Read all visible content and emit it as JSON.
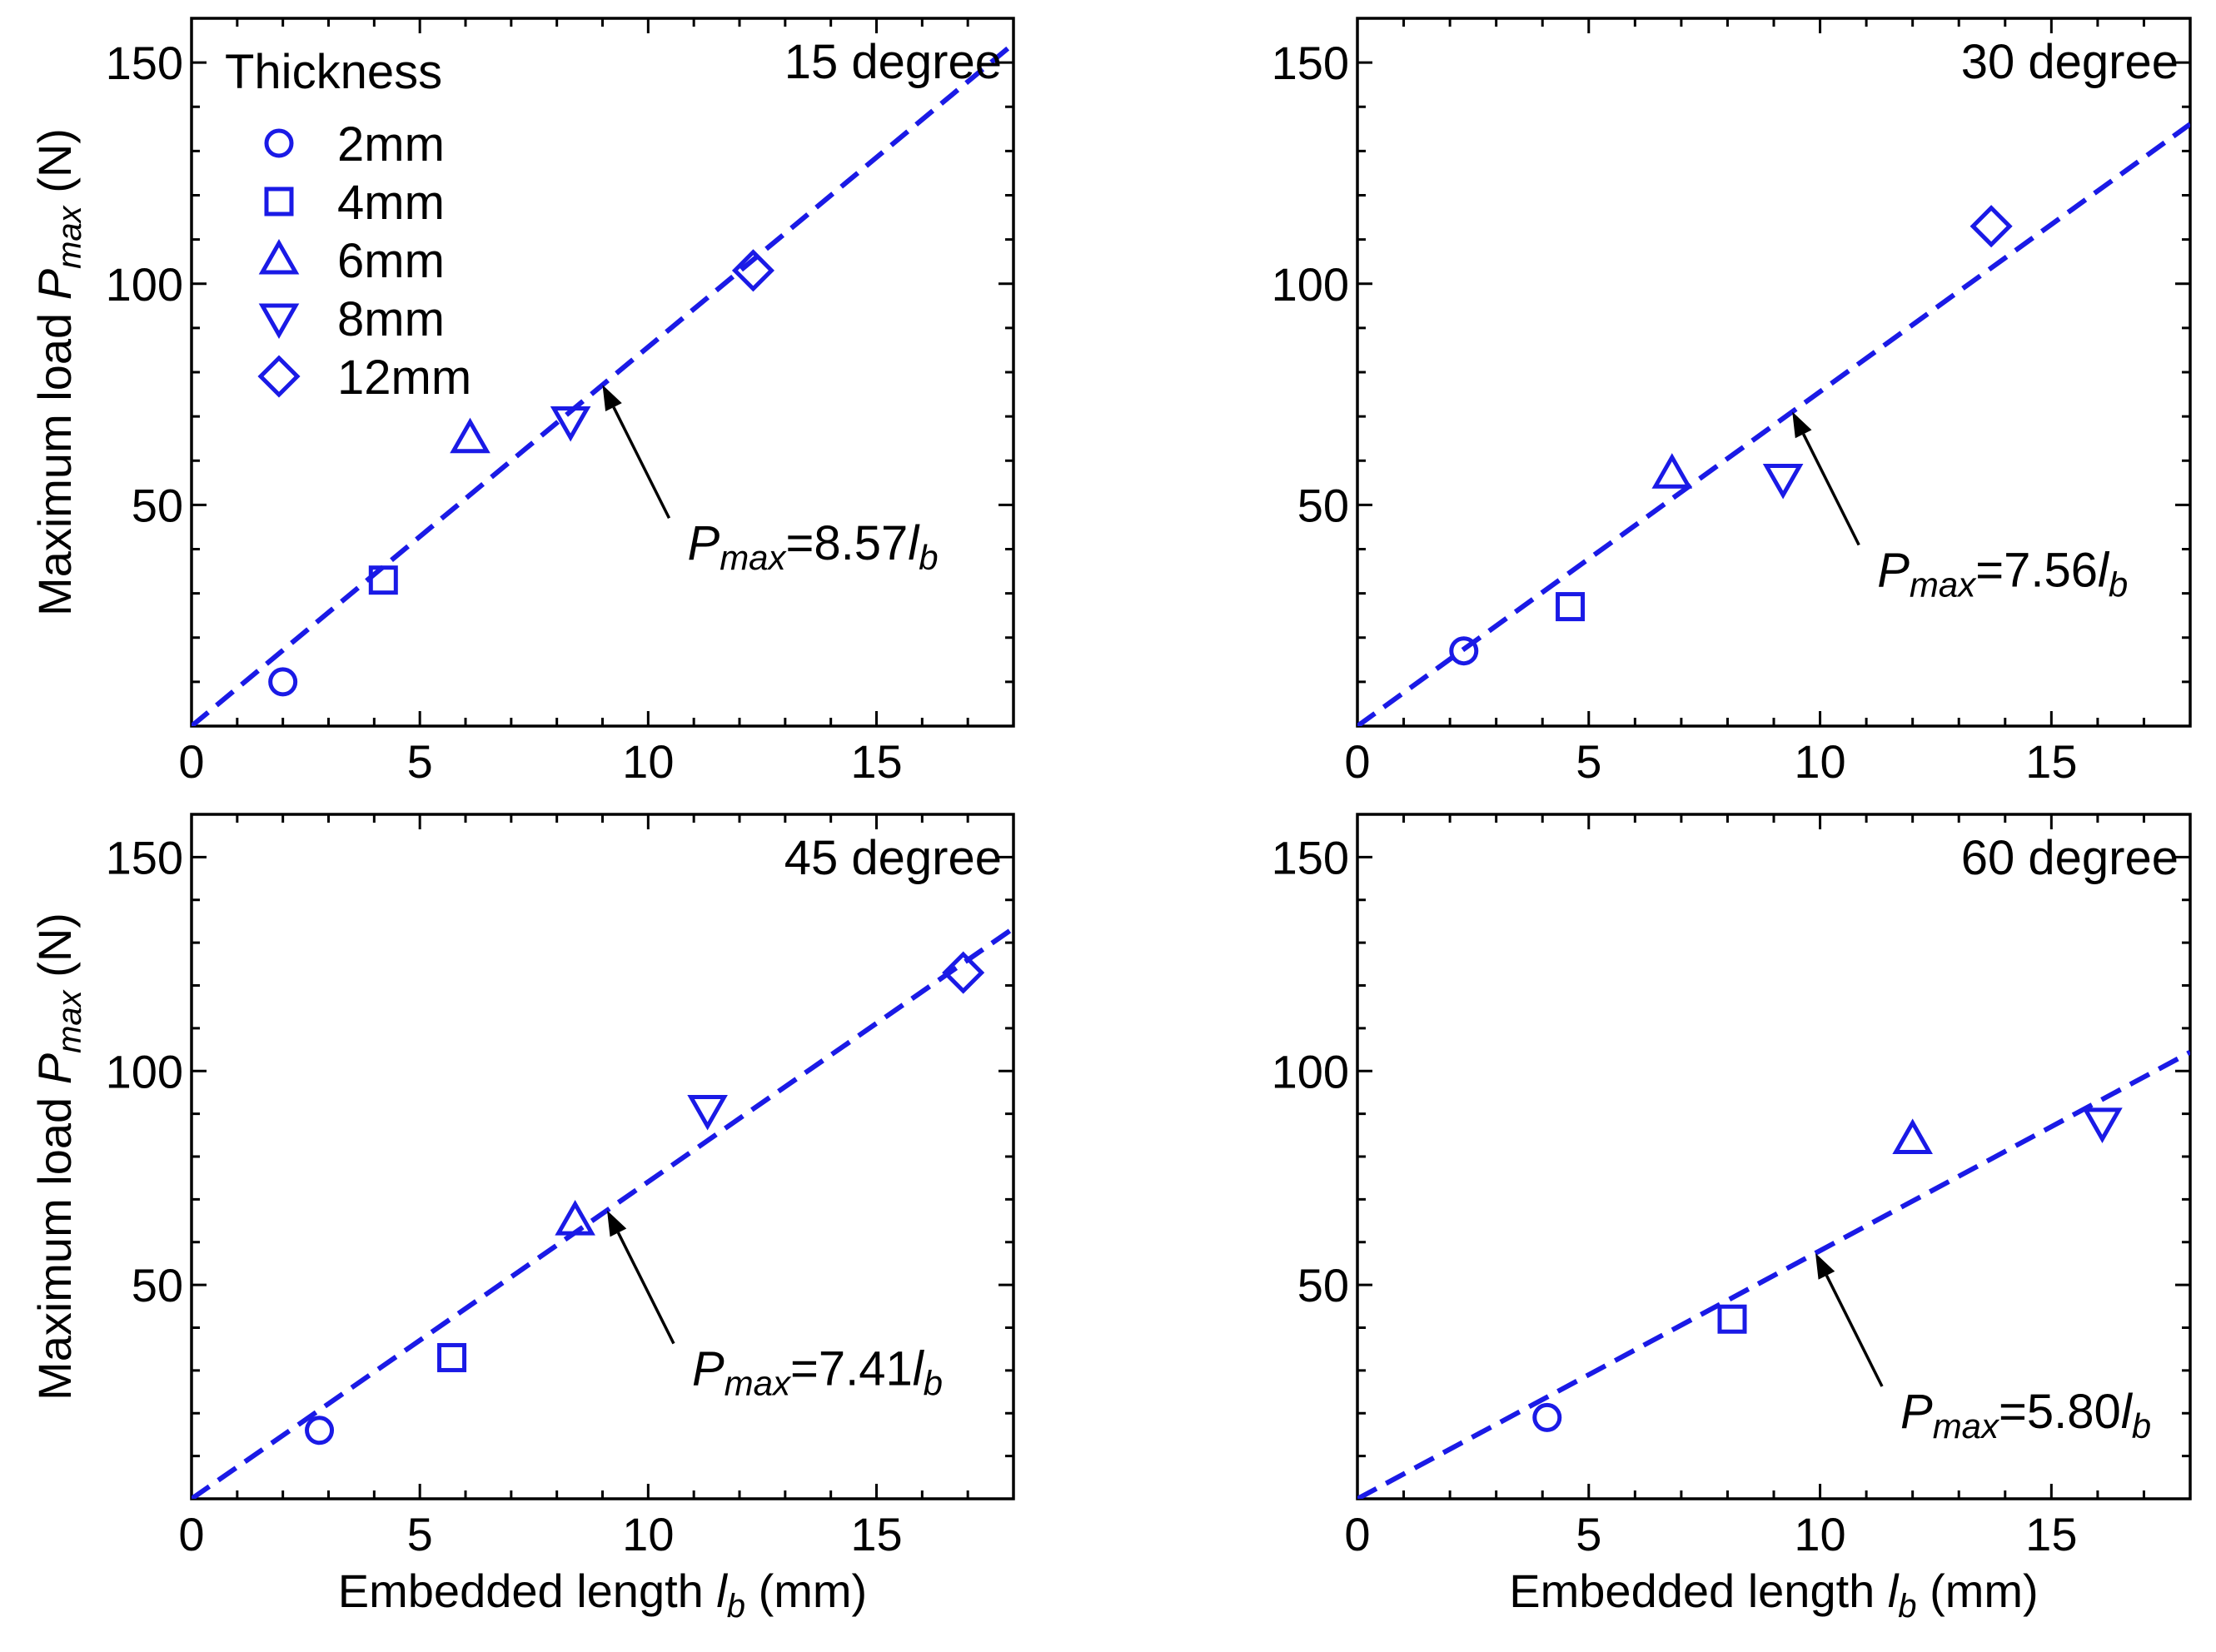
{
  "chart_data": [
    {
      "type": "scatter",
      "title": "15 degree",
      "xlabel": "",
      "ylabel": "Maximum load P_max (N)",
      "xlim": [
        0,
        18
      ],
      "ylim": [
        0,
        160
      ],
      "xticks": [
        0,
        5,
        10,
        15
      ],
      "yticks": [
        50,
        100,
        150
      ],
      "series": [
        {
          "name": "2mm",
          "shape": "circle",
          "x": [
            2.0
          ],
          "y": [
            10
          ]
        },
        {
          "name": "4mm",
          "shape": "square",
          "x": [
            4.2
          ],
          "y": [
            33
          ]
        },
        {
          "name": "6mm",
          "shape": "triangle-up",
          "x": [
            6.1
          ],
          "y": [
            65
          ]
        },
        {
          "name": "8mm",
          "shape": "triangle-down",
          "x": [
            8.3
          ],
          "y": [
            69
          ]
        },
        {
          "name": "12mm",
          "shape": "diamond",
          "x": [
            12.3
          ],
          "y": [
            103
          ]
        }
      ],
      "fit": {
        "slope": 8.57,
        "label_p": "P",
        "label_sub": "max",
        "label_coef": "=8.57",
        "label_l": "l",
        "label_lsub": "b",
        "arrow_x": 9.0
      },
      "legend": {
        "title": "Thickness",
        "position": "top-left"
      }
    },
    {
      "type": "scatter",
      "title": "30 degree",
      "xlabel": "",
      "ylabel": "",
      "xlim": [
        0,
        18
      ],
      "ylim": [
        0,
        160
      ],
      "xticks": [
        0,
        5,
        10,
        15
      ],
      "yticks": [
        50,
        100,
        150
      ],
      "series": [
        {
          "name": "2mm",
          "shape": "circle",
          "x": [
            2.3
          ],
          "y": [
            17
          ]
        },
        {
          "name": "4mm",
          "shape": "square",
          "x": [
            4.6
          ],
          "y": [
            27
          ]
        },
        {
          "name": "6mm",
          "shape": "triangle-up",
          "x": [
            6.8
          ],
          "y": [
            57
          ]
        },
        {
          "name": "8mm",
          "shape": "triangle-down",
          "x": [
            9.2
          ],
          "y": [
            56
          ]
        },
        {
          "name": "12mm",
          "shape": "diamond",
          "x": [
            13.7
          ],
          "y": [
            113
          ]
        }
      ],
      "fit": {
        "slope": 7.56,
        "label_p": "P",
        "label_sub": "max",
        "label_coef": "=7.56",
        "label_l": "l",
        "label_lsub": "b",
        "arrow_x": 9.4
      }
    },
    {
      "type": "scatter",
      "title": "45 degree",
      "xlabel": "Embedded length l_b (mm)",
      "ylabel": "Maximum load P_max (N)",
      "xlim": [
        0,
        18
      ],
      "ylim": [
        0,
        160
      ],
      "xticks": [
        0,
        5,
        10,
        15
      ],
      "yticks": [
        50,
        100,
        150
      ],
      "series": [
        {
          "name": "2mm",
          "shape": "circle",
          "x": [
            2.8
          ],
          "y": [
            16
          ]
        },
        {
          "name": "4mm",
          "shape": "square",
          "x": [
            5.7
          ],
          "y": [
            33
          ]
        },
        {
          "name": "6mm",
          "shape": "triangle-up",
          "x": [
            8.4
          ],
          "y": [
            65
          ]
        },
        {
          "name": "8mm",
          "shape": "triangle-down",
          "x": [
            11.3
          ],
          "y": [
            91
          ]
        },
        {
          "name": "12mm",
          "shape": "diamond",
          "x": [
            16.9
          ],
          "y": [
            123
          ]
        }
      ],
      "fit": {
        "slope": 7.41,
        "label_p": "P",
        "label_sub": "max",
        "label_coef": "=7.41",
        "label_l": "l",
        "label_lsub": "b",
        "arrow_x": 9.1
      }
    },
    {
      "type": "scatter",
      "title": "60 degree",
      "xlabel": "Embedded length l_b (mm)",
      "ylabel": "",
      "xlim": [
        0,
        18
      ],
      "ylim": [
        0,
        160
      ],
      "xticks": [
        0,
        5,
        10,
        15
      ],
      "yticks": [
        50,
        100,
        150
      ],
      "series": [
        {
          "name": "2mm",
          "shape": "circle",
          "x": [
            4.1
          ],
          "y": [
            19
          ]
        },
        {
          "name": "4mm",
          "shape": "square",
          "x": [
            8.1
          ],
          "y": [
            42
          ]
        },
        {
          "name": "6mm",
          "shape": "triangle-up",
          "x": [
            12.0
          ],
          "y": [
            84
          ]
        },
        {
          "name": "8mm",
          "shape": "triangle-down",
          "x": [
            16.1
          ],
          "y": [
            88
          ]
        }
      ],
      "fit": {
        "slope": 5.8,
        "label_p": "P",
        "label_sub": "max",
        "label_coef": "=5.80",
        "label_l": "l",
        "label_lsub": "b",
        "arrow_x": 9.9
      }
    }
  ],
  "axis_text": {
    "ylabel_main": "Maximum load ",
    "ylabel_p": "P",
    "ylabel_sub": "max",
    "ylabel_unit": " (N)",
    "xlabel_main": "Embedded length ",
    "xlabel_l": "l",
    "xlabel_sub": "b",
    "xlabel_unit": " (mm)"
  },
  "colors": {
    "series": "#1a1ae6",
    "axes": "#000000"
  }
}
